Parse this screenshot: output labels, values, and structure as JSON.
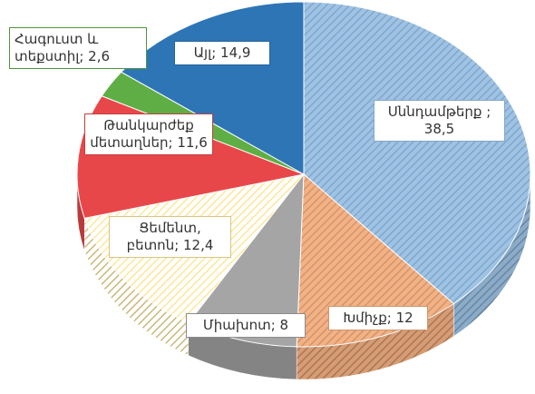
{
  "chart_data": {
    "type": "pie3d",
    "values": [
      38.5,
      12,
      8,
      12.4,
      11.6,
      2.6,
      14.9
    ],
    "value_labels": [
      "Սննդամթերք ; 38,5",
      "Խմիչք; 12",
      "Միախոտ; 8",
      "Ցեմենտ, բետոն; 12,4",
      "Թանկարժեք մետաղներ; 11,6",
      "Հագուստ և տեքստիլ; 2,6",
      "Այլ; 14,9"
    ],
    "colors": [
      "#9dc3e6",
      "#f4b183",
      "#a5a5a5",
      "#ffe699",
      "#e8474a",
      "#5fae45",
      "#2e75b6"
    ],
    "patterns": [
      "hatch",
      "hatch",
      null,
      "hatch",
      null,
      null,
      null
    ]
  }
}
